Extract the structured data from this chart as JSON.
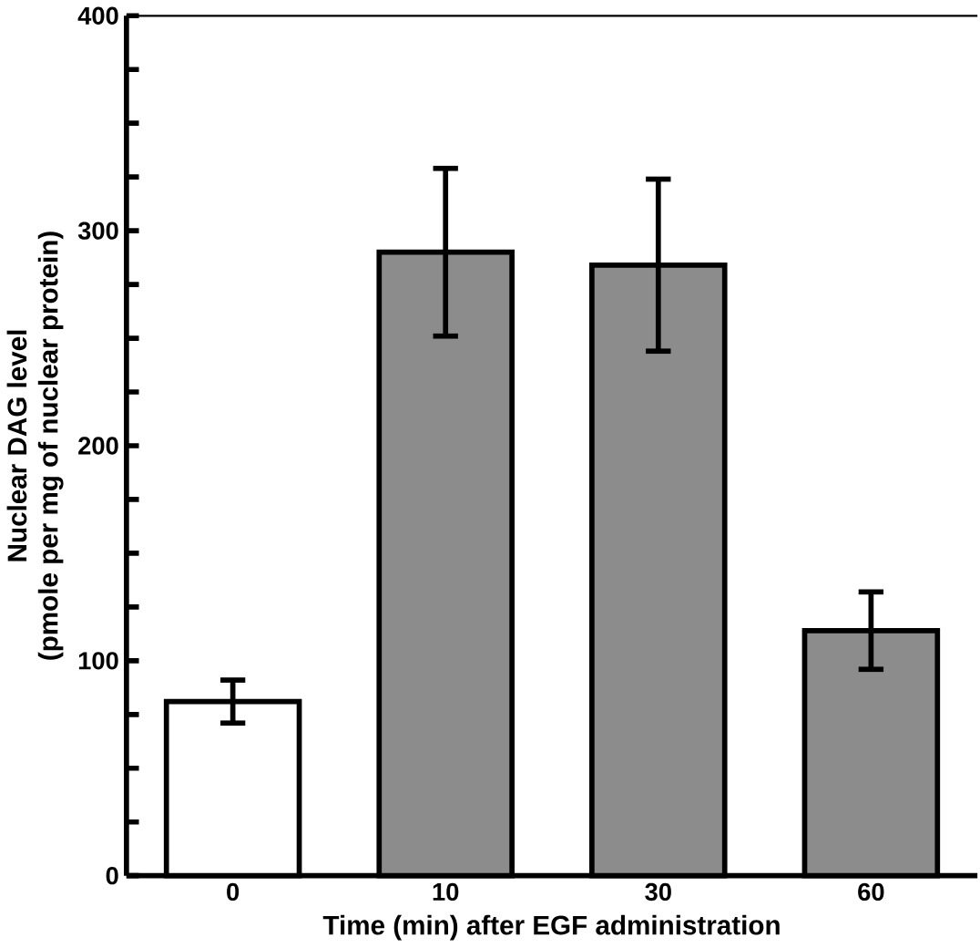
{
  "chart_data": {
    "type": "bar",
    "xlabel": "Time (min) after EGF administration",
    "ylabel": "Nuclear DAG level\n(pmole per mg of nuclear protein)",
    "categories": [
      "0",
      "10",
      "30",
      "60"
    ],
    "values": [
      81,
      290,
      284,
      114
    ],
    "colors": [
      "#ffffff",
      "#8c8c8c",
      "#8c8c8c",
      "#8c8c8c"
    ],
    "errors": [
      10,
      39,
      40,
      18
    ],
    "ylim": [
      0,
      400
    ],
    "yticks": [
      0,
      {
        "value": 25,
        "label": null
      },
      {
        "value": 50,
        "label": null
      },
      {
        "value": 75,
        "label": null
      },
      100,
      {
        "value": 125,
        "label": null
      },
      {
        "value": 150,
        "label": null
      },
      {
        "value": 175,
        "label": null
      },
      200,
      {
        "value": 225,
        "label": null
      },
      {
        "value": 250,
        "label": null
      },
      {
        "value": 275,
        "label": null
      },
      300,
      {
        "value": 325,
        "label": null
      },
      {
        "value": 350,
        "label": null
      },
      {
        "value": 375,
        "label": null
      },
      400
    ],
    "ref_lines": [
      {
        "axis": "y",
        "value": 400,
        "color": "#000000"
      }
    ]
  }
}
